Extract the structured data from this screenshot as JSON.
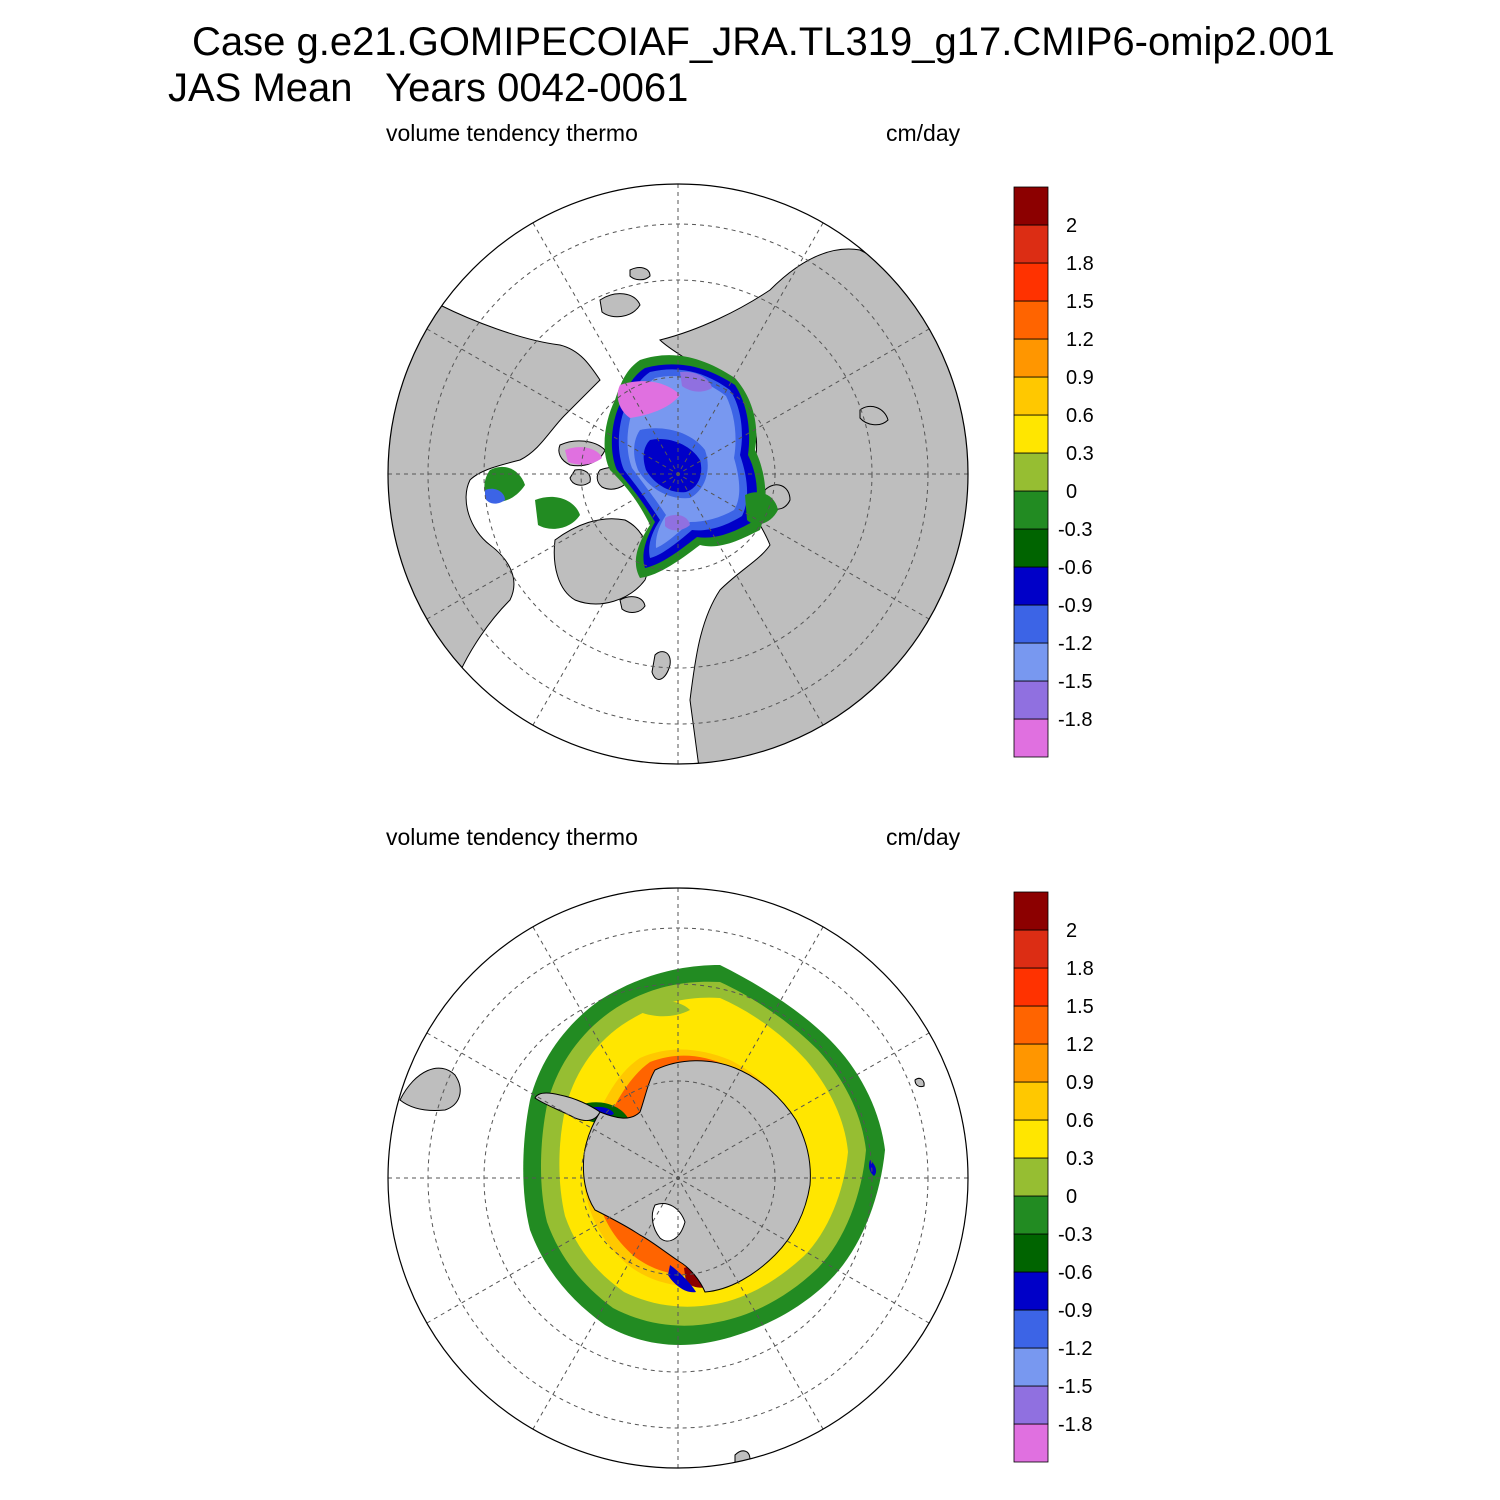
{
  "figure": {
    "title_line1": "Case g.e21.GOMIPECOIAF_JRA.TL319_g17.CMIP6-omip2.001",
    "title_line2": "JAS Mean   Years 0042-0061"
  },
  "colorbar": {
    "colors": [
      "#e070e0",
      "#9070e0",
      "#7898f0",
      "#3c64e6",
      "#0000c8",
      "#006400",
      "#228b22",
      "#96be32",
      "#ffe600",
      "#ffc800",
      "#ff9600",
      "#ff6400",
      "#ff3200",
      "#dc2d14",
      "#8c0000"
    ],
    "tick_labels": [
      "-1.8",
      "-1.5",
      "-1.2",
      "-0.9",
      "-0.6",
      "-0.3",
      "0",
      "0.3",
      "0.6",
      "0.9",
      "1.2",
      "1.5",
      "1.8",
      "2"
    ]
  },
  "panels": [
    {
      "id": "north",
      "left_label": "volume tendency thermo",
      "right_label": "cm/day",
      "hemisphere": "Northern Hemisphere polar stereographic",
      "land_color": "#bebebe"
    },
    {
      "id": "south",
      "left_label": "volume tendency thermo",
      "right_label": "cm/day",
      "hemisphere": "Southern Hemisphere polar stereographic",
      "land_color": "#bebebe"
    }
  ]
}
